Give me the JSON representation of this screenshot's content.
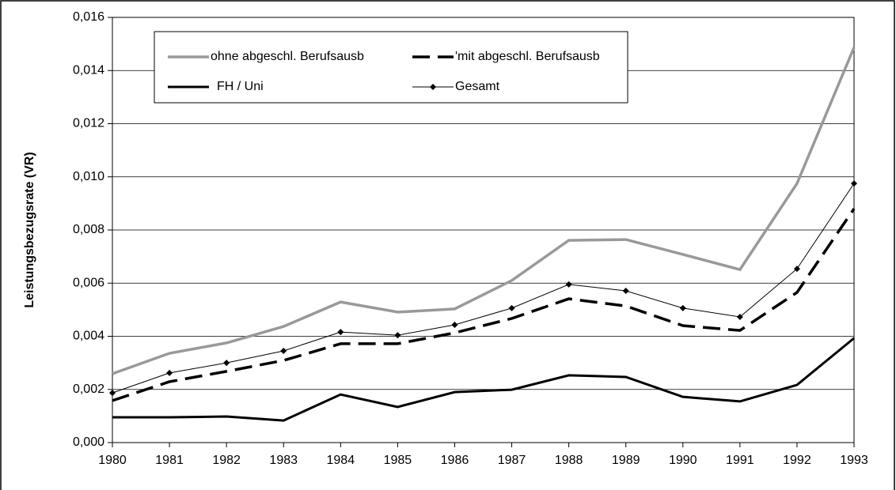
{
  "chart_data": {
    "type": "line",
    "y_label": "Leistungsbezugsrate (VR)",
    "x": [
      1980,
      1981,
      1982,
      1983,
      1984,
      1985,
      1986,
      1987,
      1988,
      1989,
      1990,
      1991,
      1992,
      1993
    ],
    "xlim": [
      1980,
      1993
    ],
    "xticks": [
      1980,
      1981,
      1982,
      1983,
      1984,
      1985,
      1986,
      1987,
      1988,
      1989,
      1990,
      1991,
      1992,
      1993
    ],
    "ylim": [
      0,
      0.016
    ],
    "yticks": [
      {
        "value": 0,
        "label": "0,000"
      },
      {
        "value": 0.002,
        "label": "0,002"
      },
      {
        "value": 0.004,
        "label": "0,004"
      },
      {
        "value": 0.006,
        "label": "0,006"
      },
      {
        "value": 0.008,
        "label": "0,008"
      },
      {
        "value": 0.01,
        "label": "0,010"
      },
      {
        "value": 0.012,
        "label": "0,012"
      },
      {
        "value": 0.014,
        "label": "0,014"
      },
      {
        "value": 0.016,
        "label": "0,016"
      }
    ],
    "grid": true,
    "legend": "top",
    "series": [
      {
        "name": "ohne abgeschl. Berufsausb",
        "color": "#999999",
        "values": [
          0.00259,
          0.00336,
          0.00375,
          0.00437,
          0.00529,
          0.00491,
          0.00503,
          0.0061,
          0.00761,
          0.00764,
          0.00708,
          0.00651,
          0.00975,
          0.01487
        ]
      },
      {
        "name": "'mit abgeschl. Berufsausb",
        "color": "#000000",
        "dashed": true,
        "values": [
          0.00158,
          0.00229,
          0.00268,
          0.00309,
          0.00372,
          0.00372,
          0.00413,
          0.00467,
          0.00541,
          0.00514,
          0.0044,
          0.00422,
          0.00565,
          0.0088
        ]
      },
      {
        "name": "FH / Uni",
        "color": "#000000",
        "values": [
          0.00095,
          0.00095,
          0.00098,
          0.00083,
          0.00181,
          0.00134,
          0.0019,
          0.00199,
          0.00253,
          0.00247,
          0.00172,
          0.00155,
          0.00217,
          0.00393
        ]
      },
      {
        "name": "Gesamt",
        "color": "#000000",
        "marker": "diamond",
        "values": [
          0.00187,
          0.00262,
          0.003,
          0.00345,
          0.00416,
          0.00404,
          0.00443,
          0.00506,
          0.00595,
          0.00571,
          0.00506,
          0.00473,
          0.00654,
          0.00975
        ]
      }
    ]
  }
}
